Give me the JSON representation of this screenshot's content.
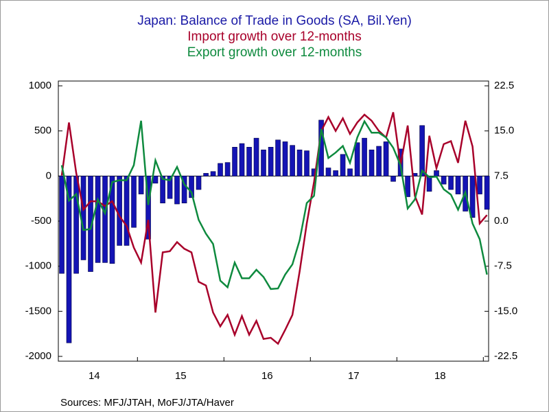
{
  "chart_data": {
    "type": "bar-line",
    "title": "Japan: Balance of Trade in Goods (SA, Bil.Yen)",
    "subtitles": [
      "Import growth over 12-months",
      "Export growth over 12-months"
    ],
    "source": "Sources:  MFJ/JTAH, MoFJ/JTA/Haver",
    "x": [
      2014.125,
      2014.208,
      2014.292,
      2014.375,
      2014.458,
      2014.542,
      2014.625,
      2014.708,
      2014.792,
      2014.875,
      2014.958,
      2015.042,
      2015.125,
      2015.208,
      2015.292,
      2015.375,
      2015.458,
      2015.542,
      2015.625,
      2015.708,
      2015.792,
      2015.875,
      2015.958,
      2016.042,
      2016.125,
      2016.208,
      2016.292,
      2016.375,
      2016.458,
      2016.542,
      2016.625,
      2016.708,
      2016.792,
      2016.875,
      2016.958,
      2017.042,
      2017.125,
      2017.208,
      2017.292,
      2017.375,
      2017.458,
      2017.542,
      2017.625,
      2017.708,
      2017.792,
      2017.875,
      2017.958,
      2018.042,
      2018.125,
      2018.208,
      2018.292,
      2018.375,
      2018.458,
      2018.542,
      2018.625,
      2018.708,
      2018.792,
      2018.875,
      2018.958,
      2019.042
    ],
    "xlim": [
      2014.085,
      2019.061
    ],
    "xticks": [
      {
        "value": 2014.5,
        "label": "14"
      },
      {
        "value": 2015.5,
        "label": "15"
      },
      {
        "value": 2016.5,
        "label": "16"
      },
      {
        "value": 2017.5,
        "label": "17"
      },
      {
        "value": 2018.5,
        "label": "18"
      }
    ],
    "ylim": [
      -2000,
      1000
    ],
    "yticks": [
      1000,
      500,
      0,
      -500,
      -1000,
      -1500,
      -2000
    ],
    "y2lim": [
      -22.5,
      22.5
    ],
    "y2ticks": [
      22.5,
      {
        "value": 15,
        "label": "15.0"
      },
      7.5,
      {
        "value": 0,
        "label": "0.0"
      },
      -7.5,
      {
        "value": -15,
        "label": "-15.0"
      },
      -22.5
    ],
    "series": [
      {
        "type": "bar",
        "color": "#1414b4",
        "values": [
          -1080,
          -1850,
          -1080,
          -930,
          -1060,
          -960,
          -960,
          -970,
          -770,
          -770,
          -570,
          -200,
          -700,
          -80,
          -300,
          -250,
          -310,
          -300,
          -240,
          -150,
          30,
          50,
          140,
          150,
          320,
          360,
          320,
          420,
          290,
          320,
          400,
          380,
          340,
          290,
          280,
          80,
          620,
          90,
          60,
          240,
          80,
          370,
          420,
          290,
          330,
          380,
          -60,
          300,
          -230,
          30,
          560,
          -170,
          60,
          -90,
          -150,
          -200,
          -390,
          -460,
          -200,
          -370
        ]
      },
      {
        "type": "line",
        "axis": "y2",
        "color": "#a8002a",
        "values": [
          7.6,
          16.4,
          8.0,
          1.9,
          3.3,
          3.3,
          2.5,
          3.3,
          0.8,
          -0.8,
          -4.4,
          -6.9,
          0.2,
          -15.2,
          -5.2,
          -5.0,
          -3.5,
          -4.6,
          -5.2,
          -10.1,
          -10.7,
          -15.2,
          -17.5,
          -15.6,
          -18.9,
          -15.8,
          -18.9,
          -16.6,
          -19.6,
          -19.4,
          -20.4,
          -18.1,
          -15.6,
          -8.4,
          -0.4,
          6.5,
          15.0,
          17.3,
          15.0,
          17.1,
          14.5,
          16.4,
          17.7,
          16.7,
          15.0,
          13.9,
          18.1,
          9.3,
          15.9,
          4.2,
          1.1,
          14.2,
          8.8,
          12.8,
          13.3,
          9.7,
          16.7,
          12.4,
          -0.4,
          1.0
        ]
      },
      {
        "type": "line",
        "axis": "y2",
        "color": "#0e8a3e",
        "values": [
          9.3,
          3.4,
          4.5,
          -1.5,
          -1.3,
          3.6,
          1.3,
          6.5,
          6.8,
          6.8,
          9.3,
          16.7,
          2.7,
          10.1,
          7.0,
          6.8,
          9.0,
          6.1,
          4.8,
          0.2,
          -2.1,
          -3.8,
          -9.9,
          -11.0,
          -6.9,
          -9.5,
          -9.5,
          -8.1,
          -9.3,
          -11.3,
          -11.2,
          -8.9,
          -7.2,
          -3.2,
          3.0,
          4.2,
          15.3,
          10.5,
          11.4,
          12.5,
          9.7,
          13.9,
          16.6,
          14.7,
          14.7,
          13.9,
          12.2,
          9.3,
          2.1,
          3.6,
          8.4,
          7.3,
          7.4,
          5.3,
          4.4,
          1.9,
          4.8,
          -0.4,
          -3.0,
          -8.9
        ]
      }
    ]
  }
}
